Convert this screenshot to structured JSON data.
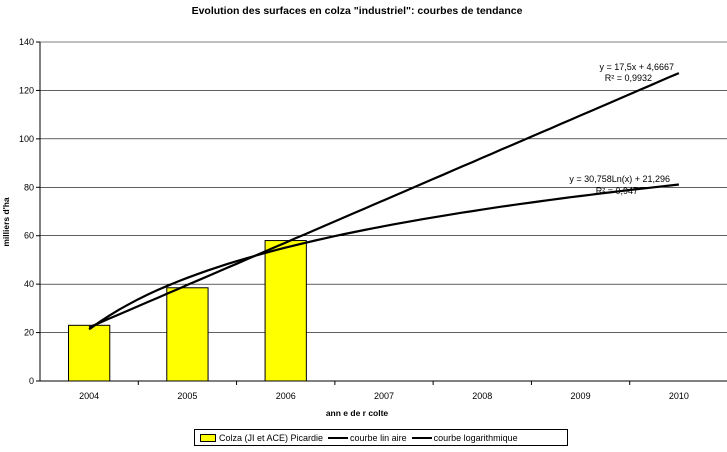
{
  "chart_data": {
    "type": "bar",
    "title": "Evolution des surfaces en colza \"industriel\": courbes de tendance",
    "xlabel": "ann  e de r colte",
    "ylabel": "milliers d'ha",
    "categories": [
      "2004",
      "2005",
      "2006",
      "2007",
      "2008",
      "2009",
      "2010"
    ],
    "ylim": [
      0,
      140
    ],
    "yticks": [
      0,
      20,
      40,
      60,
      80,
      100,
      120,
      140
    ],
    "grid": true,
    "legend_position": "bottom",
    "series": [
      {
        "name": "Colza (JI et ACE) Picardie",
        "type": "bar",
        "color": "#ffff00",
        "values": [
          23,
          38.5,
          58,
          null,
          null,
          null,
          null
        ]
      },
      {
        "name": "courbe lin  aire",
        "type": "line",
        "color": "#000000",
        "equation": "y = 17,5x + 4,6667",
        "r2": "R² = 0,9932",
        "formula": "linear",
        "a": 17.5,
        "b": 4.6667
      },
      {
        "name": "courbe logarithmique",
        "type": "line",
        "color": "#000000",
        "equation": "y = 30,758Ln(x) + 21,296",
        "r2": "R² = 0,947",
        "formula": "log",
        "a": 30.758,
        "b": 21.296
      }
    ]
  }
}
